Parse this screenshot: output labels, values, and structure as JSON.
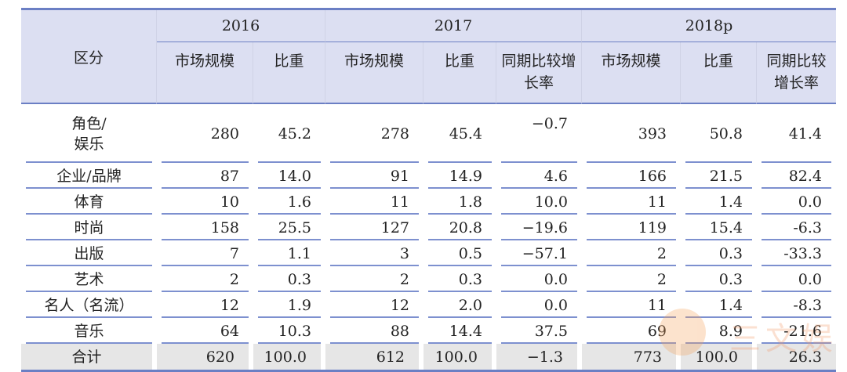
{
  "header": {
    "category_label": "区分",
    "years": [
      "2016",
      "2017",
      "2018p"
    ],
    "sub_2016": [
      "市场规模",
      "比重"
    ],
    "sub_2017": [
      "市场规模",
      "比重",
      "同期比较增长率"
    ],
    "sub_2018": [
      "市场规模",
      "比重",
      "同期比较增长率"
    ]
  },
  "rows": [
    {
      "name": "角色/娱乐",
      "v": [
        "280",
        "45.2",
        "278",
        "45.4",
        "−0.7",
        "393",
        "50.8",
        "41.4"
      ]
    },
    {
      "name": "企业/品牌",
      "v": [
        "87",
        "14.0",
        "91",
        "14.9",
        "4.6",
        "166",
        "21.5",
        "82.4"
      ]
    },
    {
      "name": "体育",
      "v": [
        "10",
        "1.6",
        "11",
        "1.8",
        "10.0",
        "11",
        "1.4",
        "0.0"
      ]
    },
    {
      "name": "时尚",
      "v": [
        "158",
        "25.5",
        "127",
        "20.8",
        "−19.6",
        "119",
        "15.4",
        "-6.3"
      ]
    },
    {
      "name": "出版",
      "v": [
        "7",
        "1.1",
        "3",
        "0.5",
        "−57.1",
        "2",
        "0.3",
        "-33.3"
      ]
    },
    {
      "name": "艺术",
      "v": [
        "2",
        "0.3",
        "2",
        "0.3",
        "0.0",
        "2",
        "0.3",
        "0.0"
      ]
    },
    {
      "name": "名人（名流）",
      "v": [
        "12",
        "1.9",
        "12",
        "2.0",
        "0.0",
        "11",
        "1.4",
        "-8.3"
      ]
    },
    {
      "name": "音乐",
      "v": [
        "64",
        "10.3",
        "88",
        "14.4",
        "37.5",
        "69",
        "8.9",
        "-21.6"
      ]
    }
  ],
  "total": {
    "name": "合计",
    "v": [
      "620",
      "100.0",
      "612",
      "100.0",
      "−1.3",
      "773",
      "100.0",
      "26.3"
    ]
  },
  "watermark": "三文娱",
  "colors": {
    "header_bg": "#dcdff2",
    "rule": "#6b7fc4",
    "total_bg": "#e6e6e6"
  }
}
